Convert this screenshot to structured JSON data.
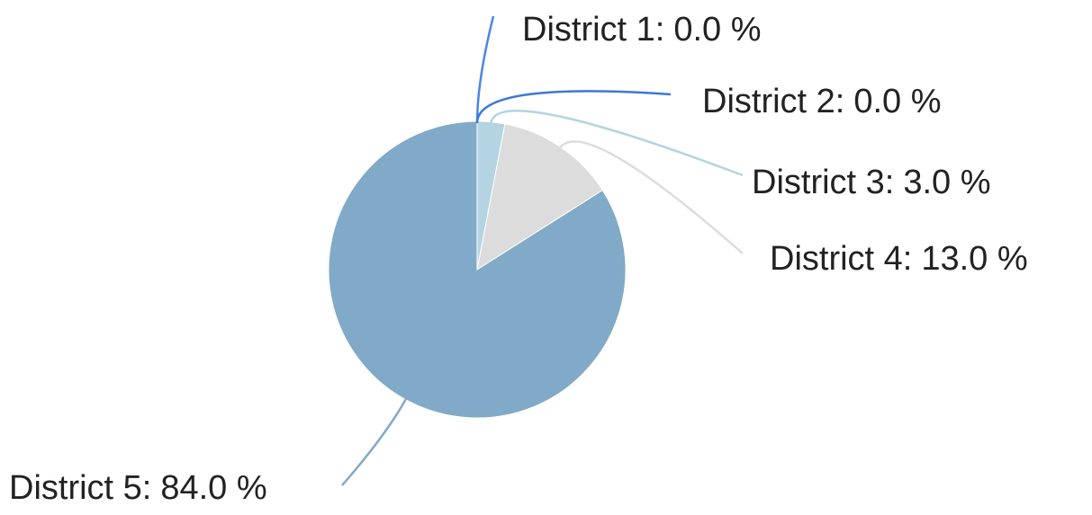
{
  "chart_data": {
    "type": "pie",
    "categories": [
      "District 1:",
      "District 2:",
      "District 3:",
      "District 4:",
      "District 5:"
    ],
    "values": [
      0,
      0,
      3,
      13,
      84
    ],
    "value_labels": [
      "0.0 %",
      "0.0 %",
      "3.0 %",
      "13.0 %",
      "84.0 %"
    ],
    "colors": [
      "#4a86e8",
      "#3c78d8",
      "#b3d4e0",
      "#dcdcdc",
      "#80aac8"
    ]
  }
}
